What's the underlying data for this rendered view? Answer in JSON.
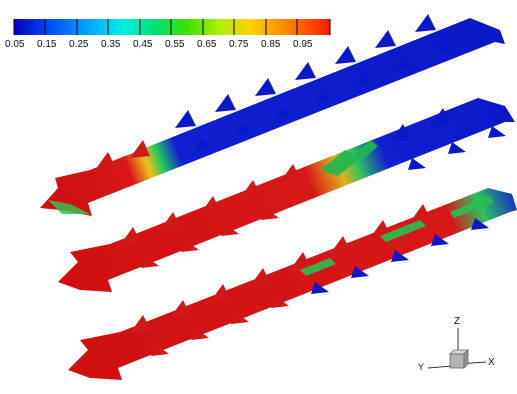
{
  "legend": {
    "ticks": [
      "0.05",
      "0.15",
      "0.25",
      "0.35",
      "0.45",
      "0.55",
      "0.65",
      "0.75",
      "0.85",
      "0.95"
    ],
    "colors": [
      "#0000c8",
      "#0040ff",
      "#00a0ff",
      "#00f0f0",
      "#00e070",
      "#40e000",
      "#c8f000",
      "#ffd200",
      "#ff8000",
      "#ff2000"
    ]
  },
  "axes": {
    "z_label": "Z",
    "y_label": "Y",
    "x_label": "X"
  },
  "palette": {
    "low": "#0a14c8",
    "high": "#d21414",
    "mid_green": "#20c840",
    "mid_yellow": "#f0e628"
  }
}
